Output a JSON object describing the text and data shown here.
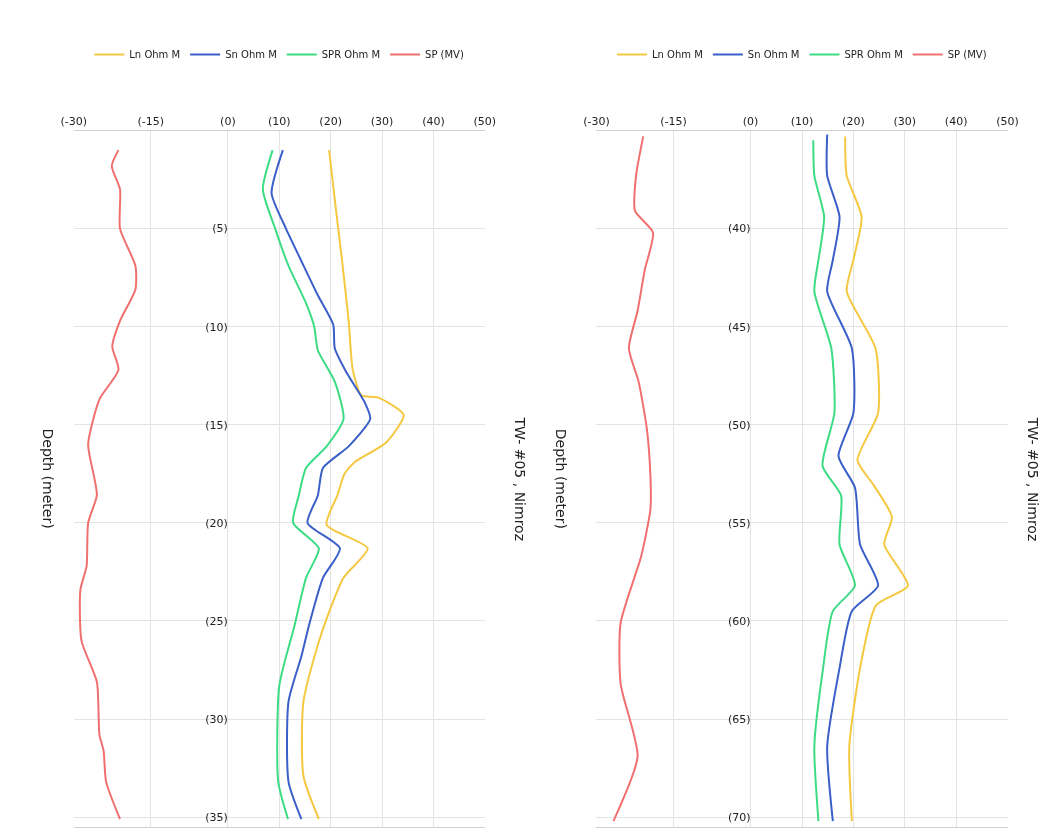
{
  "chart_data": [
    {
      "type": "line",
      "orientation": "horizontal",
      "ylabel": "Depth (meter)",
      "annotations": [
        "TW- #05 , Nimroz"
      ],
      "legend": "top",
      "grid": true,
      "xlim": [
        -30,
        50
      ],
      "xticks": [
        {
          "value": -30,
          "label": "(-30)"
        },
        {
          "value": -15,
          "label": "(-15)"
        },
        {
          "value": 0,
          "label": "(0)"
        },
        {
          "value": 10,
          "label": "(10)"
        },
        {
          "value": 20,
          "label": "(20)"
        },
        {
          "value": 30,
          "label": "(30)"
        },
        {
          "value": 40,
          "label": "(40)"
        },
        {
          "value": 50,
          "label": "(50)"
        }
      ],
      "ylim": [
        35.5,
        0
      ],
      "yticks": [
        {
          "value": 5,
          "label": "(5)"
        },
        {
          "value": 10,
          "label": "(10)"
        },
        {
          "value": 15,
          "label": "(15)"
        },
        {
          "value": 20,
          "label": "(20)"
        },
        {
          "value": 25,
          "label": "(25)"
        },
        {
          "value": 30,
          "label": "(30)"
        },
        {
          "value": 35,
          "label": "(35)"
        }
      ],
      "series": [
        {
          "name": "Ln Ohm M",
          "color": "#f5c842",
          "x": [
            1.0,
            3.3,
            6.6,
            9.7,
            12.2,
            13.5,
            13.6,
            14.5,
            15.9,
            16.9,
            17.5,
            18.6,
            20.1,
            21.3,
            22.8,
            25.8,
            29.1,
            32.9,
            35.1
          ],
          "values": [
            19.7,
            20.7,
            22.2,
            23.5,
            24.3,
            26,
            29.2,
            34.2,
            30.8,
            24.7,
            22.7,
            21.3,
            19.2,
            27.2,
            22.5,
            18,
            14.7,
            14.7,
            17.7
          ]
        },
        {
          "name": "Sn Ohm M",
          "color": "#3a5fc8",
          "x": [
            1.0,
            3.2,
            5.0,
            6.6,
            8.4,
            9.9,
            11.1,
            12.3,
            13.9,
            14.7,
            16.1,
            17.2,
            18.6,
            20.0,
            21.3,
            22.8,
            25.2,
            26.8,
            29.1,
            33.2,
            35.1
          ],
          "values": [
            10.7,
            8.5,
            11.3,
            14.2,
            17.5,
            20.5,
            20.8,
            23,
            26.7,
            27.7,
            23.5,
            18.5,
            17.5,
            15.5,
            21.8,
            18.5,
            15.8,
            14.3,
            11.8,
            11.8,
            14.3
          ]
        },
        {
          "name": "SPR Ohm M",
          "color": "#3ddc84",
          "x": [
            1.0,
            3.0,
            5.0,
            6.9,
            8.8,
            10.0,
            11.2,
            12.8,
            14.7,
            16.1,
            17.2,
            18.6,
            20.0,
            21.3,
            22.8,
            25.2,
            28.3,
            33.2,
            35.1
          ],
          "values": [
            8.7,
            6.8,
            9.2,
            11.8,
            15.2,
            16.8,
            17.5,
            20.8,
            22.5,
            19.2,
            15.2,
            13.8,
            12.7,
            17.7,
            15.2,
            13,
            10,
            9.8,
            11.7
          ]
        },
        {
          "name": "SP (MV)",
          "color": "#f07070",
          "x": [
            1.0,
            1.8,
            3.0,
            5.0,
            6.9,
            8.1,
            9.7,
            11.0,
            12.2,
            13.7,
            16.0,
            17.7,
            18.6,
            20.0,
            22.2,
            23.4,
            26.0,
            28.1,
            30.8,
            31.6,
            33.2,
            35.1
          ],
          "values": [
            -21.3,
            -22.6,
            -21,
            -21,
            -18,
            -18,
            -21,
            -22.5,
            -21.3,
            -25,
            -27.2,
            -26,
            -25.5,
            -27.2,
            -27.5,
            -28.7,
            -28.5,
            -25.5,
            -25,
            -24.2,
            -23.7,
            -21
          ]
        }
      ]
    },
    {
      "type": "line",
      "orientation": "horizontal",
      "ylabel": "Depth (meter)",
      "annotations": [
        "TW- #05 , Nimroz"
      ],
      "legend": "top",
      "grid": true,
      "xlim": [
        -30,
        50
      ],
      "xticks": [
        {
          "value": -30,
          "label": "(-30)"
        },
        {
          "value": -15,
          "label": "(-15)"
        },
        {
          "value": 0,
          "label": "(0)"
        },
        {
          "value": 10,
          "label": "(10)"
        },
        {
          "value": 20,
          "label": "(20)"
        },
        {
          "value": 30,
          "label": "(30)"
        },
        {
          "value": 40,
          "label": "(40)"
        },
        {
          "value": 50,
          "label": "(50)"
        }
      ],
      "ylim": [
        70.5,
        35
      ],
      "yticks": [
        {
          "value": 40,
          "label": "(40)"
        },
        {
          "value": 45,
          "label": "(45)"
        },
        {
          "value": 50,
          "label": "(50)"
        },
        {
          "value": 55,
          "label": "(55)"
        },
        {
          "value": 60,
          "label": "(60)"
        },
        {
          "value": 65,
          "label": "(65)"
        },
        {
          "value": 70,
          "label": "(70)"
        }
      ],
      "series": [
        {
          "name": "Ln Ohm M",
          "color": "#f5c842",
          "x": [
            35.3,
            37.3,
            39.4,
            41.6,
            43.2,
            46.1,
            49.4,
            51.8,
            53.1,
            54.7,
            56.1,
            58.2,
            59.2,
            62.4,
            66.4,
            70.2
          ],
          "values": [
            18.4,
            18.7,
            21.6,
            20,
            18.7,
            24.3,
            24.8,
            20.8,
            24,
            27.5,
            26,
            30.6,
            24.4,
            21.3,
            19.2,
            19.7
          ]
        },
        {
          "name": "Sn Ohm M",
          "color": "#3a5fc8",
          "x": [
            35.2,
            37.3,
            39.4,
            41.6,
            43.2,
            46.1,
            49.4,
            51.6,
            53.2,
            56.1,
            58.2,
            59.5,
            62.4,
            66.4,
            70.2
          ],
          "values": [
            14.9,
            14.9,
            17.3,
            16,
            14.9,
            19.7,
            20,
            17.1,
            20.3,
            21.3,
            24.8,
            19.7,
            17.3,
            14.9,
            16
          ]
        },
        {
          "name": "SPR Ohm M",
          "color": "#3ddc84",
          "x": [
            35.5,
            37.3,
            39.4,
            41.6,
            43.2,
            46.1,
            49.4,
            52.1,
            53.6,
            56.1,
            58.2,
            59.5,
            62.4,
            66.4,
            70.2
          ],
          "values": [
            12.2,
            12.4,
            14.3,
            13.2,
            12.4,
            15.7,
            16.3,
            14,
            17.6,
            17.3,
            20.3,
            16,
            14.1,
            12.4,
            13.2
          ]
        },
        {
          "name": "SP (MV)",
          "color": "#f07070",
          "x": [
            35.3,
            37.3,
            39.1,
            40.2,
            42.1,
            44.2,
            46.1,
            47.8,
            50.2,
            52.6,
            54.3,
            56.7,
            60.1,
            63.2,
            66.9,
            70.2
          ],
          "values": [
            -20.9,
            -22.3,
            -22.5,
            -19,
            -20.6,
            -22,
            -23.7,
            -21.8,
            -20.2,
            -19.5,
            -19.5,
            -21.3,
            -25.3,
            -25.3,
            -22,
            -26.7
          ]
        }
      ]
    }
  ]
}
